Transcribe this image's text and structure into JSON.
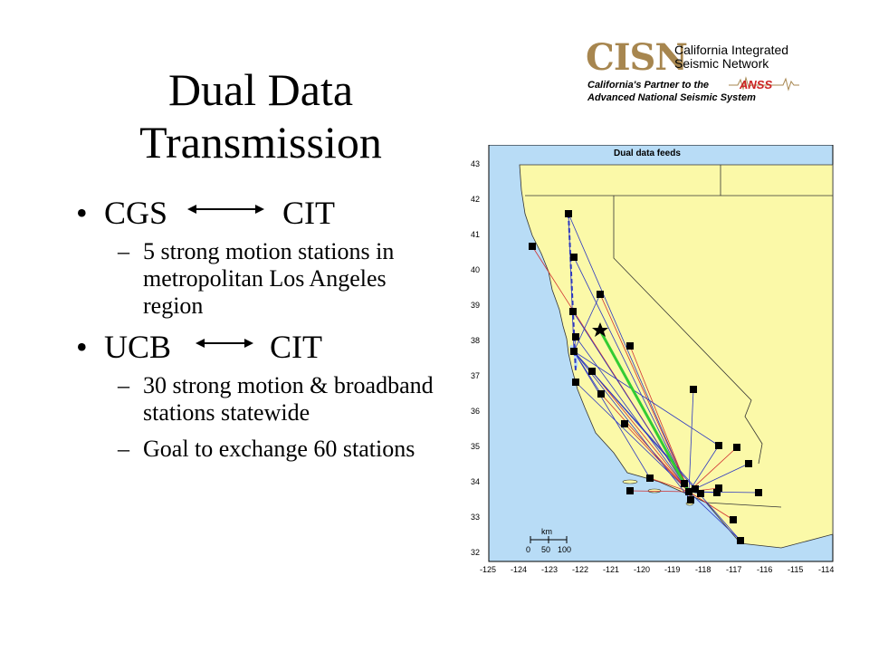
{
  "slide": {
    "title_lines": [
      "Dual Data",
      "Transmission"
    ],
    "bullets": [
      {
        "left": "CGS",
        "right": "CIT",
        "subs": [
          "5 strong motion stations in metropolitan Los Angeles region"
        ]
      },
      {
        "left": "UCB",
        "right": "CIT",
        "subs": [
          "30 strong motion & broadband stations statewide",
          "Goal to exchange 60 stations"
        ]
      }
    ],
    "bullet_glyph": "•",
    "dash_glyph": "–"
  },
  "logo": {
    "acronym": "CISN",
    "name_line1": "California Integrated",
    "name_line2": "Seismic Network",
    "partner_line1": "California's Partner to the",
    "partner_line2": "Advanced National Seismic System",
    "anss": "ANSS"
  },
  "map": {
    "title": "Dual data feeds",
    "lat_labels": [
      "43",
      "42",
      "41",
      "40",
      "39",
      "38",
      "37",
      "36",
      "35",
      "34",
      "33",
      "32"
    ],
    "lon_labels": [
      "-125",
      "-124",
      "-123",
      "-122",
      "-121",
      "-120",
      "-119",
      "-118",
      "-117",
      "-116",
      "-115",
      "-114"
    ],
    "scale_unit": "km",
    "scale_ticks": [
      "0",
      "50",
      "100"
    ],
    "colors": {
      "land": "#fbf9a8",
      "ocean": "#b8dcf6",
      "red": "#d03030",
      "blue": "#2b37c2",
      "green": "#33cc33"
    }
  }
}
